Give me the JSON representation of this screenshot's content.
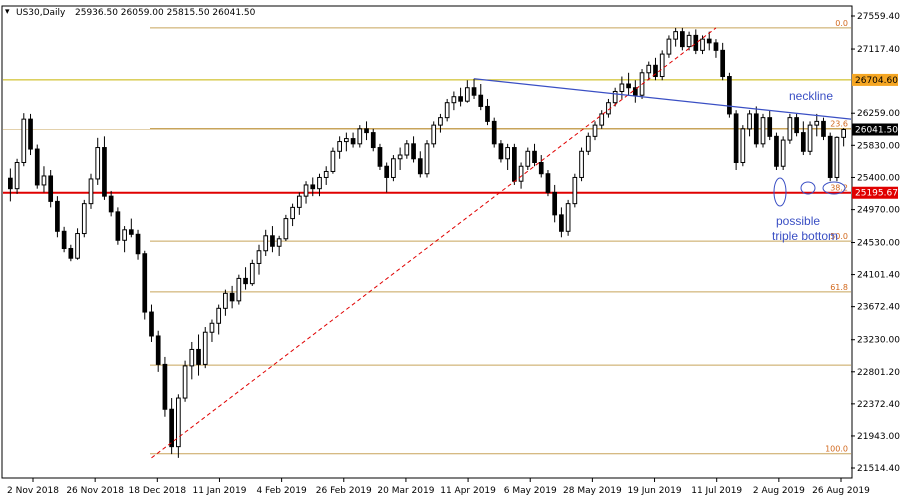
{
  "header": {
    "symbol": "US30,Daily",
    "ohlc": "25936.50 26059.00 25815.50 26041.50"
  },
  "colors": {
    "candle": "#000000",
    "fib": "#c8a45a",
    "yellow_level": "#c8b400",
    "support": "#e00000",
    "neckline": "#3a4fc4",
    "fib_diagonal": "#e00000",
    "price_tag_bg": "#000000",
    "support_tag_bg": "#e00000",
    "yellow_tag_bg": "#f5a623"
  },
  "annotations": {
    "neckline": "neckline",
    "possible_line1": "possible",
    "possible_line2": "triple bottom"
  },
  "chart_data": {
    "type": "candlestick",
    "title": "US30,Daily",
    "y_ticks": [
      27559.4,
      27117.4,
      26259.0,
      25830.0,
      25400.0,
      24970.0,
      24530.0,
      24101.4,
      23672.4,
      23230.0,
      22801.2,
      22372.4,
      21943.0,
      21514.4
    ],
    "ylim": [
      21514.4,
      27559.4
    ],
    "x_ticks": [
      "2 Nov 2018",
      "26 Nov 2018",
      "18 Dec 2018",
      "11 Jan 2019",
      "4 Feb 2019",
      "26 Feb 2019",
      "20 Mar 2019",
      "11 Apr 2019",
      "6 May 2019",
      "28 May 2019",
      "19 Jun 2019",
      "11 Jul 2019",
      "2 Aug 2019",
      "26 Aug 2019"
    ],
    "fib_levels": [
      {
        "label": "0.0",
        "value": 27400
      },
      {
        "label": "23.6",
        "value": 26055
      },
      {
        "label": "38.2",
        "value": 25195.67
      },
      {
        "label": "50.0",
        "value": 24548
      },
      {
        "label": "61.8",
        "value": 23870
      },
      {
        "label": "",
        "value": 22890
      },
      {
        "label": "100.0",
        "value": 21705
      }
    ],
    "horizontal_levels": [
      {
        "label": "26704.60",
        "value": 26704.6,
        "kind": "yellow"
      },
      {
        "label": "26041.50",
        "value": 26041.5,
        "kind": "price"
      },
      {
        "label": "25195.67",
        "value": 25195.67,
        "kind": "support"
      }
    ],
    "neckline": {
      "from": {
        "bar": 69,
        "value": 26720
      },
      "to": {
        "bar": 127,
        "value": 26180
      }
    },
    "fib_line": {
      "from": {
        "bar": 21,
        "value": 21650
      },
      "to": {
        "bar": 105,
        "value": 27400
      }
    },
    "ohlc": [
      {
        "o": 25390,
        "h": 25520,
        "l": 25080,
        "c": 25250
      },
      {
        "o": 25250,
        "h": 25650,
        "l": 25180,
        "c": 25600
      },
      {
        "o": 25600,
        "h": 26260,
        "l": 25550,
        "c": 26180
      },
      {
        "o": 26180,
        "h": 26250,
        "l": 25700,
        "c": 25780
      },
      {
        "o": 25780,
        "h": 25840,
        "l": 25250,
        "c": 25300
      },
      {
        "o": 25300,
        "h": 25550,
        "l": 25200,
        "c": 25420
      },
      {
        "o": 25420,
        "h": 25500,
        "l": 25000,
        "c": 25080
      },
      {
        "o": 25080,
        "h": 25150,
        "l": 24600,
        "c": 24680
      },
      {
        "o": 24680,
        "h": 24740,
        "l": 24400,
        "c": 24450
      },
      {
        "o": 24450,
        "h": 24500,
        "l": 24280,
        "c": 24320
      },
      {
        "o": 24320,
        "h": 24720,
        "l": 24300,
        "c": 24650
      },
      {
        "o": 24650,
        "h": 25100,
        "l": 24600,
        "c": 25050
      },
      {
        "o": 25050,
        "h": 25450,
        "l": 24980,
        "c": 25380
      },
      {
        "o": 25380,
        "h": 25930,
        "l": 25300,
        "c": 25800
      },
      {
        "o": 25800,
        "h": 25950,
        "l": 25100,
        "c": 25150
      },
      {
        "o": 25150,
        "h": 25220,
        "l": 24880,
        "c": 24940
      },
      {
        "o": 24940,
        "h": 25000,
        "l": 24500,
        "c": 24560
      },
      {
        "o": 24560,
        "h": 24750,
        "l": 24400,
        "c": 24700
      },
      {
        "o": 24700,
        "h": 24850,
        "l": 24600,
        "c": 24640
      },
      {
        "o": 24640,
        "h": 24700,
        "l": 24300,
        "c": 24380
      },
      {
        "o": 24380,
        "h": 24420,
        "l": 23500,
        "c": 23600
      },
      {
        "o": 23600,
        "h": 23700,
        "l": 23200,
        "c": 23280
      },
      {
        "o": 23280,
        "h": 23350,
        "l": 22800,
        "c": 22900
      },
      {
        "o": 22900,
        "h": 23000,
        "l": 22200,
        "c": 22300
      },
      {
        "o": 22300,
        "h": 22450,
        "l": 21700,
        "c": 21800
      },
      {
        "o": 21800,
        "h": 22500,
        "l": 21650,
        "c": 22450
      },
      {
        "o": 22450,
        "h": 22950,
        "l": 22400,
        "c": 22880
      },
      {
        "o": 22880,
        "h": 23200,
        "l": 22700,
        "c": 23100
      },
      {
        "o": 23100,
        "h": 23300,
        "l": 22750,
        "c": 22900
      },
      {
        "o": 22900,
        "h": 23400,
        "l": 22850,
        "c": 23330
      },
      {
        "o": 23330,
        "h": 23500,
        "l": 23200,
        "c": 23450
      },
      {
        "o": 23450,
        "h": 23700,
        "l": 23300,
        "c": 23650
      },
      {
        "o": 23650,
        "h": 23900,
        "l": 23550,
        "c": 23850
      },
      {
        "o": 23850,
        "h": 23950,
        "l": 23650,
        "c": 23750
      },
      {
        "o": 23750,
        "h": 24100,
        "l": 23700,
        "c": 24050
      },
      {
        "o": 24050,
        "h": 24200,
        "l": 23900,
        "c": 23980
      },
      {
        "o": 23980,
        "h": 24300,
        "l": 23950,
        "c": 24250
      },
      {
        "o": 24250,
        "h": 24500,
        "l": 24100,
        "c": 24420
      },
      {
        "o": 24420,
        "h": 24700,
        "l": 24350,
        "c": 24620
      },
      {
        "o": 24620,
        "h": 24750,
        "l": 24400,
        "c": 24480
      },
      {
        "o": 24480,
        "h": 24620,
        "l": 24350,
        "c": 24580
      },
      {
        "o": 24580,
        "h": 24900,
        "l": 24550,
        "c": 24850
      },
      {
        "o": 24850,
        "h": 25050,
        "l": 24750,
        "c": 25000
      },
      {
        "o": 25000,
        "h": 25200,
        "l": 24900,
        "c": 25150
      },
      {
        "o": 25150,
        "h": 25350,
        "l": 25050,
        "c": 25300
      },
      {
        "o": 25300,
        "h": 25400,
        "l": 25150,
        "c": 25250
      },
      {
        "o": 25250,
        "h": 25450,
        "l": 25150,
        "c": 25400
      },
      {
        "o": 25400,
        "h": 25550,
        "l": 25300,
        "c": 25480
      },
      {
        "o": 25480,
        "h": 25800,
        "l": 25450,
        "c": 25750
      },
      {
        "o": 25750,
        "h": 25950,
        "l": 25650,
        "c": 25880
      },
      {
        "o": 25880,
        "h": 26000,
        "l": 25750,
        "c": 25920
      },
      {
        "o": 25920,
        "h": 26000,
        "l": 25800,
        "c": 25850
      },
      {
        "o": 25850,
        "h": 26100,
        "l": 25800,
        "c": 26050
      },
      {
        "o": 26050,
        "h": 26150,
        "l": 25900,
        "c": 26000
      },
      {
        "o": 26000,
        "h": 26050,
        "l": 25750,
        "c": 25800
      },
      {
        "o": 25800,
        "h": 25850,
        "l": 25500,
        "c": 25550
      },
      {
        "o": 25550,
        "h": 25600,
        "l": 25200,
        "c": 25400
      },
      {
        "o": 25400,
        "h": 25700,
        "l": 25350,
        "c": 25650
      },
      {
        "o": 25650,
        "h": 25800,
        "l": 25500,
        "c": 25700
      },
      {
        "o": 25700,
        "h": 25900,
        "l": 25650,
        "c": 25850
      },
      {
        "o": 25850,
        "h": 25950,
        "l": 25600,
        "c": 25650
      },
      {
        "o": 25650,
        "h": 25750,
        "l": 25400,
        "c": 25450
      },
      {
        "o": 25450,
        "h": 25900,
        "l": 25400,
        "c": 25850
      },
      {
        "o": 25850,
        "h": 26150,
        "l": 25800,
        "c": 26100
      },
      {
        "o": 26100,
        "h": 26250,
        "l": 26000,
        "c": 26200
      },
      {
        "o": 26200,
        "h": 26450,
        "l": 26150,
        "c": 26400
      },
      {
        "o": 26400,
        "h": 26550,
        "l": 26300,
        "c": 26480
      },
      {
        "o": 26480,
        "h": 26600,
        "l": 26350,
        "c": 26420
      },
      {
        "o": 26420,
        "h": 26700,
        "l": 26400,
        "c": 26600
      },
      {
        "o": 26600,
        "h": 26720,
        "l": 26450,
        "c": 26500
      },
      {
        "o": 26500,
        "h": 26650,
        "l": 26300,
        "c": 26350
      },
      {
        "o": 26350,
        "h": 26450,
        "l": 26100,
        "c": 26150
      },
      {
        "o": 26150,
        "h": 26200,
        "l": 25800,
        "c": 25850
      },
      {
        "o": 25850,
        "h": 25900,
        "l": 25600,
        "c": 25650
      },
      {
        "o": 25650,
        "h": 25850,
        "l": 25500,
        "c": 25800
      },
      {
        "o": 25800,
        "h": 25850,
        "l": 25300,
        "c": 25350
      },
      {
        "o": 25350,
        "h": 25600,
        "l": 25250,
        "c": 25550
      },
      {
        "o": 25550,
        "h": 25800,
        "l": 25500,
        "c": 25750
      },
      {
        "o": 25750,
        "h": 25850,
        "l": 25550,
        "c": 25600
      },
      {
        "o": 25600,
        "h": 25700,
        "l": 25400,
        "c": 25450
      },
      {
        "o": 25450,
        "h": 25500,
        "l": 25150,
        "c": 25200
      },
      {
        "o": 25200,
        "h": 25300,
        "l": 24800,
        "c": 24900
      },
      {
        "o": 24900,
        "h": 25000,
        "l": 24600,
        "c": 24680
      },
      {
        "o": 24680,
        "h": 25100,
        "l": 24620,
        "c": 25050
      },
      {
        "o": 25050,
        "h": 25450,
        "l": 25000,
        "c": 25400
      },
      {
        "o": 25400,
        "h": 25800,
        "l": 25350,
        "c": 25750
      },
      {
        "o": 25750,
        "h": 26000,
        "l": 25700,
        "c": 25950
      },
      {
        "o": 25950,
        "h": 26150,
        "l": 25900,
        "c": 26100
      },
      {
        "o": 26100,
        "h": 26300,
        "l": 26050,
        "c": 26250
      },
      {
        "o": 26250,
        "h": 26450,
        "l": 26200,
        "c": 26400
      },
      {
        "o": 26400,
        "h": 26600,
        "l": 26350,
        "c": 26550
      },
      {
        "o": 26550,
        "h": 26750,
        "l": 26450,
        "c": 26650
      },
      {
        "o": 26650,
        "h": 26800,
        "l": 26500,
        "c": 26600
      },
      {
        "o": 26600,
        "h": 26700,
        "l": 26400,
        "c": 26500
      },
      {
        "o": 26500,
        "h": 26850,
        "l": 26450,
        "c": 26800
      },
      {
        "o": 26800,
        "h": 26950,
        "l": 26700,
        "c": 26900
      },
      {
        "o": 26900,
        "h": 27000,
        "l": 26700,
        "c": 26750
      },
      {
        "o": 26750,
        "h": 27100,
        "l": 26700,
        "c": 27050
      },
      {
        "o": 27050,
        "h": 27300,
        "l": 27000,
        "c": 27250
      },
      {
        "o": 27250,
        "h": 27400,
        "l": 27150,
        "c": 27350
      },
      {
        "o": 27350,
        "h": 27400,
        "l": 27100,
        "c": 27150
      },
      {
        "o": 27150,
        "h": 27350,
        "l": 27100,
        "c": 27300
      },
      {
        "o": 27300,
        "h": 27380,
        "l": 27050,
        "c": 27100
      },
      {
        "o": 27100,
        "h": 27300,
        "l": 27050,
        "c": 27250
      },
      {
        "o": 27250,
        "h": 27350,
        "l": 27100,
        "c": 27200
      },
      {
        "o": 27200,
        "h": 27250,
        "l": 27000,
        "c": 27100
      },
      {
        "o": 27100,
        "h": 27200,
        "l": 26700,
        "c": 26750
      },
      {
        "o": 26750,
        "h": 26800,
        "l": 26200,
        "c": 26250
      },
      {
        "o": 26250,
        "h": 26300,
        "l": 25500,
        "c": 25600
      },
      {
        "o": 25600,
        "h": 26100,
        "l": 25550,
        "c": 26050
      },
      {
        "o": 26050,
        "h": 26300,
        "l": 25950,
        "c": 26250
      },
      {
        "o": 26250,
        "h": 26350,
        "l": 25800,
        "c": 25850
      },
      {
        "o": 25850,
        "h": 26250,
        "l": 25800,
        "c": 26200
      },
      {
        "o": 26200,
        "h": 26300,
        "l": 25900,
        "c": 25950
      },
      {
        "o": 25950,
        "h": 26000,
        "l": 25500,
        "c": 25550
      },
      {
        "o": 25550,
        "h": 25950,
        "l": 25500,
        "c": 25900
      },
      {
        "o": 25900,
        "h": 26250,
        "l": 25850,
        "c": 26200
      },
      {
        "o": 26200,
        "h": 26250,
        "l": 25950,
        "c": 26000
      },
      {
        "o": 26000,
        "h": 26150,
        "l": 25700,
        "c": 25750
      },
      {
        "o": 25750,
        "h": 26150,
        "l": 25700,
        "c": 26100
      },
      {
        "o": 26100,
        "h": 26250,
        "l": 25950,
        "c": 26150
      },
      {
        "o": 26150,
        "h": 26200,
        "l": 25900,
        "c": 25950
      },
      {
        "o": 25950,
        "h": 26000,
        "l": 25350,
        "c": 25400
      },
      {
        "o": 25400,
        "h": 25950,
        "l": 25350,
        "c": 25936.5
      },
      {
        "o": 25936.5,
        "h": 26059,
        "l": 25815.5,
        "c": 26041.5
      }
    ]
  }
}
